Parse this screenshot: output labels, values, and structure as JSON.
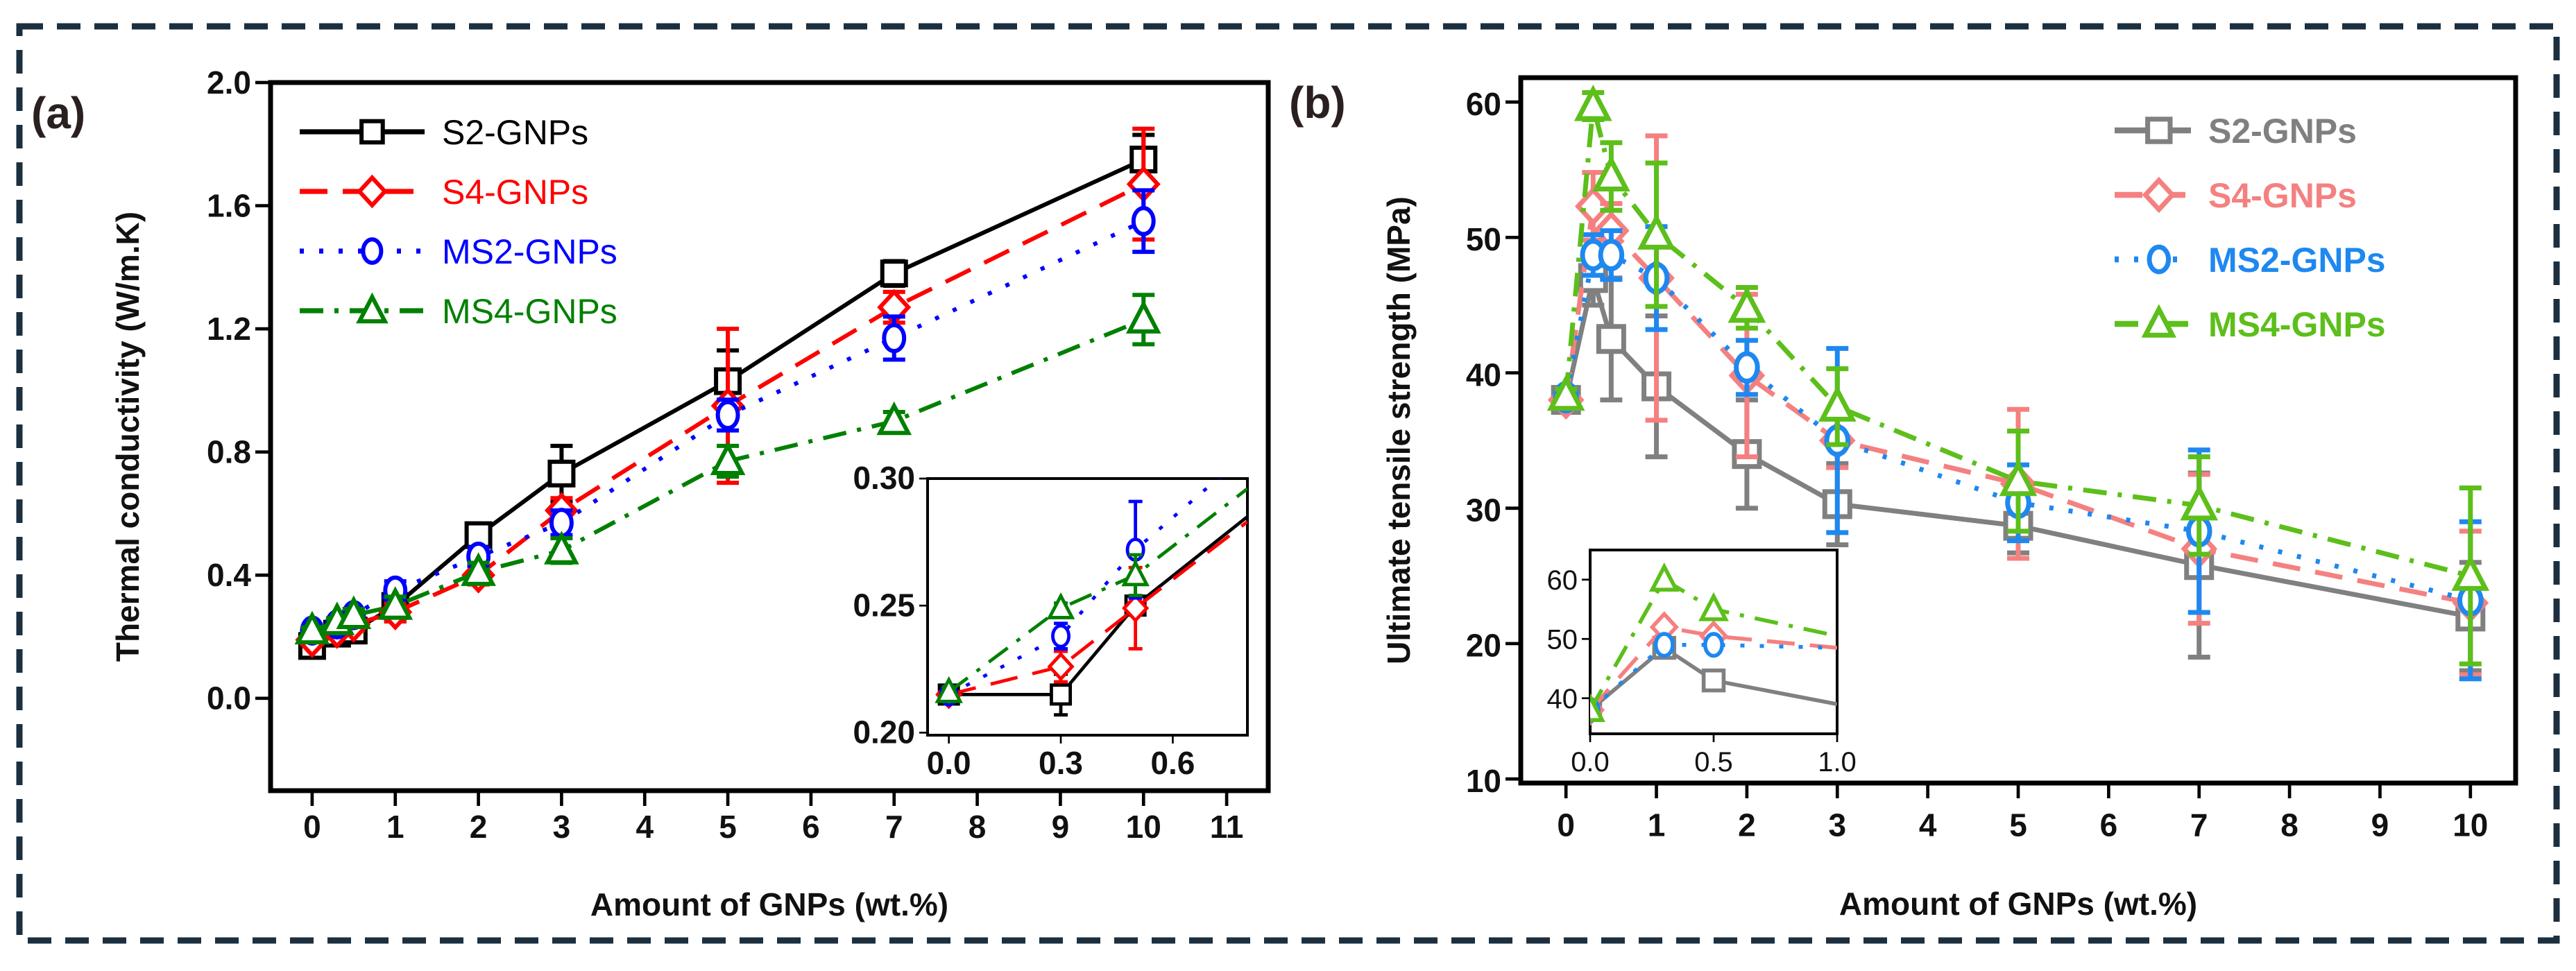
{
  "border_color": "#1b2f3f",
  "chart_data": [
    {
      "type": "line",
      "panel_label": "(a)",
      "xlabel": "Amount of GNPs (wt.%)",
      "ylabel": "Thermal conductivity (W/m.K)",
      "xlim": [
        -0.5,
        11.5
      ],
      "ylim": [
        -0.3,
        2.0
      ],
      "xticks": [
        "0",
        "1",
        "2",
        "3",
        "4",
        "5",
        "6",
        "7",
        "8",
        "9",
        "10",
        "11"
      ],
      "yticks": [
        "0.0",
        "0.4",
        "0.8",
        "1.2",
        "1.6",
        "2.0"
      ],
      "legend_position": "top-left",
      "x": [
        0,
        0.3,
        0.5,
        1,
        2,
        3,
        5,
        7,
        10
      ],
      "series": [
        {
          "name": "S2-GNPs",
          "color": "#000000",
          "marker": "square",
          "dash": "solid",
          "values": [
            0.17,
            0.21,
            0.22,
            0.3,
            0.53,
            0.73,
            1.03,
            1.38,
            1.75
          ],
          "errors": [
            0.01,
            0.01,
            0.02,
            0.05,
            0.03,
            0.09,
            0.1,
            0.04,
            0.08
          ]
        },
        {
          "name": "S4-GNPs",
          "color": "#ff0000",
          "marker": "diamond",
          "dash": "dashed",
          "values": [
            0.19,
            0.22,
            0.24,
            0.28,
            0.4,
            0.61,
            0.95,
            1.27,
            1.67
          ],
          "errors": [
            0.01,
            0.01,
            0.02,
            0.03,
            0.03,
            0.04,
            0.25,
            0.05,
            0.18
          ]
        },
        {
          "name": "MS2-GNPs",
          "color": "#0000ff",
          "marker": "circle",
          "dash": "dotted",
          "values": [
            0.22,
            0.24,
            0.27,
            0.35,
            0.46,
            0.57,
            0.92,
            1.17,
            1.55
          ],
          "errors": [
            0.01,
            0.01,
            0.02,
            0.03,
            0.03,
            0.04,
            0.05,
            0.07,
            0.1
          ]
        },
        {
          "name": "MS4-GNPs",
          "color": "#008000",
          "marker": "triangle",
          "dash": "dashdot",
          "values": [
            0.22,
            0.25,
            0.27,
            0.3,
            0.41,
            0.48,
            0.77,
            0.9,
            1.23
          ],
          "errors": [
            0.01,
            0.01,
            0.02,
            0.03,
            0.03,
            0.04,
            0.05,
            0.03,
            0.08
          ]
        }
      ],
      "inset": {
        "xlim": [
          -0.057,
          0.8
        ],
        "ylim": [
          0.199,
          0.3
        ],
        "xticks": [
          "0.0",
          "0.3",
          "0.6"
        ],
        "yticks": [
          "0.20",
          "0.25",
          "0.30"
        ],
        "x": [
          0,
          0.3,
          0.5,
          0.8
        ],
        "series": [
          {
            "values": [
              0.215,
              0.215,
              0.25,
              0.285
            ],
            "errors": [
              0.002,
              0.008,
              0.002,
              0
            ]
          },
          {
            "values": [
              0.215,
              0.226,
              0.249,
              0.283
            ],
            "errors": [
              0.002,
              0.006,
              0.016,
              0
            ]
          },
          {
            "values": [
              0.215,
              0.238,
              0.272,
              0.31
            ],
            "errors": [
              0.002,
              0.005,
              0.019,
              0
            ]
          },
          {
            "values": [
              0.216,
              0.249,
              0.262,
              0.296
            ],
            "errors": [
              0.002,
              0.002,
              0.008,
              0
            ]
          }
        ]
      }
    },
    {
      "type": "line",
      "panel_label": "(b)",
      "xlabel": "Amount of GNPs (wt.%)",
      "ylabel": "Ultimate tensile strength (MPa)",
      "xlim": [
        -0.5,
        10.5
      ],
      "ylim": [
        9.7,
        61.8
      ],
      "xticks": [
        "0",
        "1",
        "2",
        "3",
        "4",
        "5",
        "6",
        "7",
        "8",
        "9",
        "10"
      ],
      "yticks": [
        "10",
        "20",
        "30",
        "40",
        "50",
        "60"
      ],
      "legend_position": "top-right",
      "x": [
        0,
        0.3,
        0.5,
        1,
        2,
        3,
        5,
        7,
        10
      ],
      "series": [
        {
          "name": "S2-GNPs",
          "color": "#808080",
          "marker": "square",
          "dash": "solid",
          "values": [
            38.0,
            47.0,
            42.5,
            39.0,
            34.0,
            30.3,
            28.7,
            25.8,
            22.0
          ],
          "errors": [
            0.5,
            2.0,
            4.5,
            5.2,
            4.0,
            3.0,
            2.0,
            6.8,
            4.0
          ]
        },
        {
          "name": "S4-GNPs",
          "color": "#f58080",
          "marker": "diamond",
          "dash": "dashed",
          "values": [
            38.0,
            52.3,
            50.5,
            47.0,
            39.8,
            35.0,
            31.8,
            27.0,
            23.0
          ],
          "errors": [
            0.5,
            2.5,
            2.0,
            10.5,
            6.0,
            2.0,
            5.5,
            5.5,
            5.3
          ]
        },
        {
          "name": "MS2-GNPs",
          "color": "#1e88f0",
          "marker": "circle",
          "dash": "dotted",
          "values": [
            38.2,
            48.7,
            48.7,
            47.0,
            40.4,
            35.0,
            30.4,
            28.3,
            23.2
          ],
          "errors": [
            0.5,
            1.5,
            1.8,
            3.8,
            2.0,
            6.8,
            2.8,
            6.0,
            5.8
          ]
        },
        {
          "name": "MS4-GNPs",
          "color": "#5cbf1a",
          "marker": "triangle",
          "dash": "dashdot",
          "values": [
            38.3,
            59.7,
            54.5,
            50.2,
            44.8,
            37.5,
            32.0,
            30.2,
            25.0
          ],
          "errors": [
            0.5,
            1.0,
            2.5,
            5.3,
            1.5,
            2.8,
            3.7,
            3.6,
            6.5
          ]
        }
      ],
      "inset": {
        "xlim": [
          0,
          1
        ],
        "ylim": [
          34,
          65
        ],
        "xticks": [
          "0.0",
          "0.5",
          "1.0"
        ],
        "yticks": [
          "40",
          "50",
          "60"
        ],
        "x": [
          0,
          0.3,
          0.5,
          1
        ],
        "series": [
          {
            "values": [
              38,
              48.5,
              43,
              39
            ],
            "errors": [
              0,
              0,
              0,
              0
            ]
          },
          {
            "values": [
              38,
              52,
              50.5,
              48.5
            ],
            "errors": [
              0,
              0,
              0,
              0
            ]
          },
          {
            "values": [
              38,
              49,
              49,
              48.5
            ],
            "errors": [
              0,
              0,
              0,
              0
            ]
          },
          {
            "values": [
              38,
              60,
              55,
              50.5
            ],
            "errors": [
              0,
              0,
              0,
              0
            ]
          }
        ]
      }
    }
  ]
}
